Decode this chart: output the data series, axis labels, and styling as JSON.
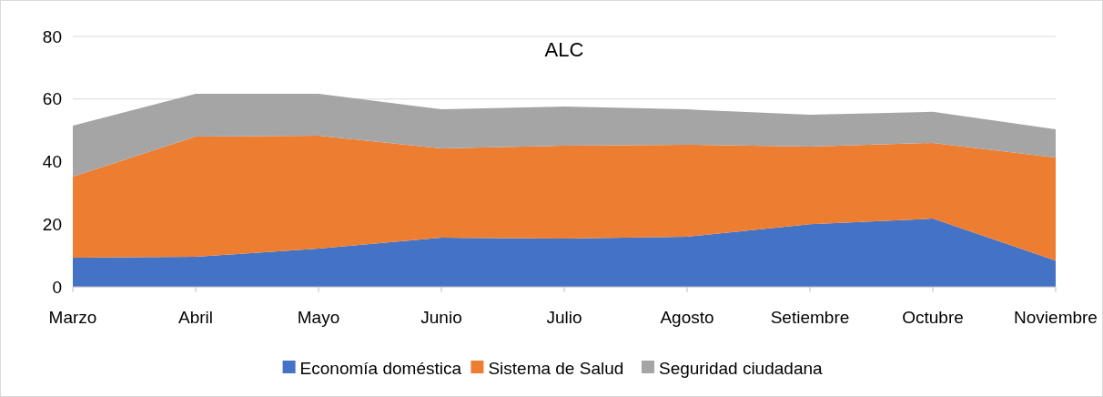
{
  "chart_data": {
    "type": "area",
    "title": "ALC",
    "stacked": true,
    "categories": [
      "Marzo",
      "Abril",
      "Mayo",
      "Junio",
      "Julio",
      "Agosto",
      "Setiembre",
      "Octubre",
      "Noviembre"
    ],
    "series": [
      {
        "name": "Economía doméstica",
        "color": "#4472c4",
        "values": [
          9.3,
          9.6,
          12.2,
          15.7,
          15.4,
          16,
          20,
          21.8,
          8.4
        ]
      },
      {
        "name": "Sistema de Salud",
        "color": "#ed7d31",
        "values": [
          25.9,
          38.4,
          36.1,
          28.5,
          29.7,
          29.4,
          24.8,
          24.2,
          32.9
        ]
      },
      {
        "name": "Seguridad ciudadana",
        "color": "#a5a5a5",
        "values": [
          16.3,
          13.7,
          13.4,
          12.5,
          12.5,
          11.3,
          10.2,
          9.9,
          9
        ]
      }
    ],
    "ylim": [
      0,
      80
    ],
    "yticks": [
      0,
      20,
      40,
      60,
      80
    ],
    "grid": "y",
    "legend": "bottom"
  }
}
